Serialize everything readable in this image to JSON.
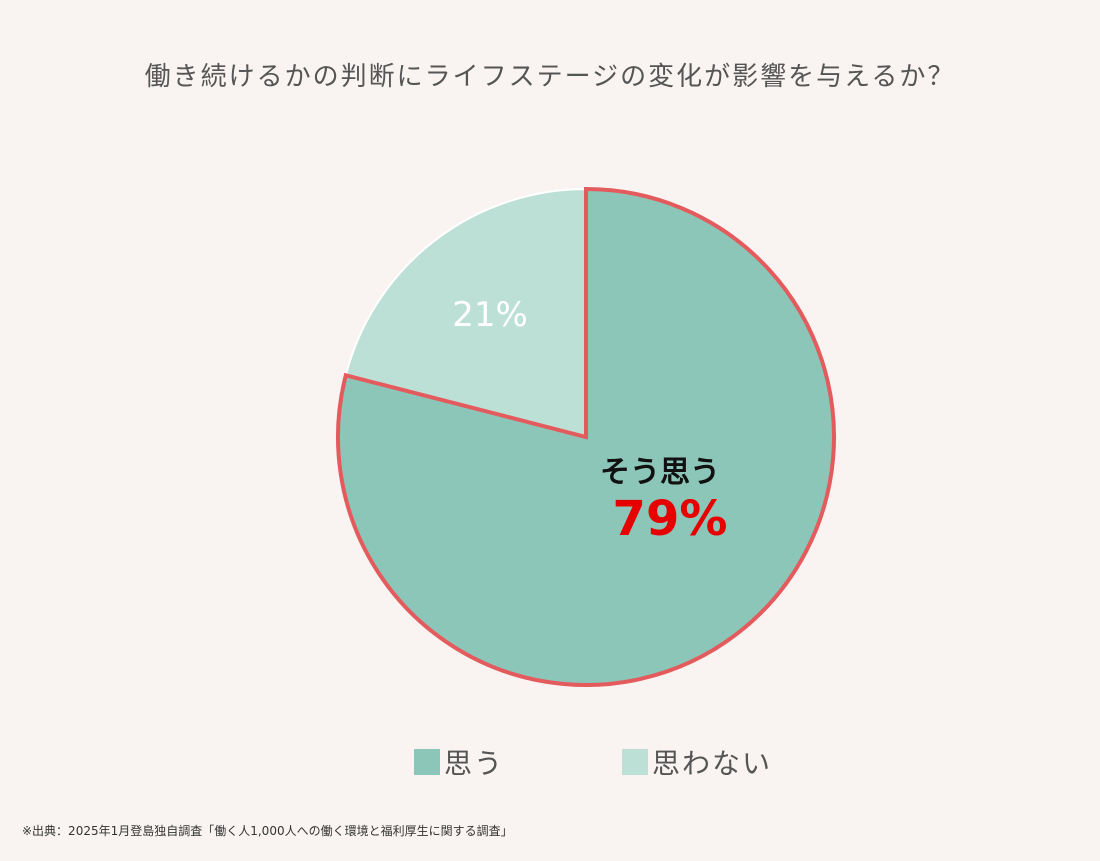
{
  "chart_title": "働き続けるかの判断にライフステージの変化が影響を与えるか？",
  "chart_data": {
    "type": "pie",
    "title": "働き続けるかの判断にライフステージの変化が影響を与えるか？",
    "slices": [
      {
        "label": "思う",
        "value": 79,
        "color": "#8cc6b9",
        "highlight": true,
        "display_label": "そう思う",
        "display_value": "79%"
      },
      {
        "label": "思わない",
        "value": 21,
        "color": "#bde0d6",
        "highlight": false,
        "display_value": "21%"
      }
    ],
    "legend_position": "bottom"
  },
  "colors": {
    "highlight_border": "#e45b5e",
    "highlight_value": "#e60000",
    "background": "#f9f4f1"
  },
  "slice_labels": {
    "major_name": "そう思う",
    "major_value": "79%",
    "minor_value": "21%"
  },
  "legend": {
    "items": [
      {
        "label": "思う",
        "color": "#8cc6b9"
      },
      {
        "label": "思わない",
        "color": "#bde0d6"
      }
    ]
  },
  "source": "※出典：2025年1月登島独自調査「働く人1,000人への働く環境と福利厚生に関する調査」"
}
